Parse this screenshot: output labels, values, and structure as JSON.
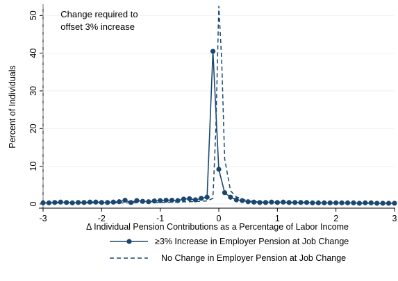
{
  "chart_data": {
    "type": "line",
    "xlabel": "Δ Individual Pension Contributions as a Percentage of Labor Income",
    "ylabel": "Percent of Individuals",
    "xlim": [
      -3,
      3
    ],
    "ylim": [
      0,
      53
    ],
    "xticks": [
      -3,
      -2,
      -1,
      0,
      1,
      2,
      3
    ],
    "yticks": [
      0,
      10,
      20,
      30,
      40,
      50
    ],
    "grid": true,
    "legend": "bottom",
    "reference_line": {
      "x": -3,
      "style": "dashed"
    },
    "annotation": {
      "x": -2.7,
      "y": 49.5,
      "lines": [
        "Change required to",
        "offset 3% increase"
      ]
    },
    "colors": {
      "series": "#1a476f",
      "refline": "#999999",
      "grid": "#eaf2f3"
    },
    "series": [
      {
        "name": "≥3% Increase in Employer Pension at Job Change",
        "style": "solid-markers",
        "x": [
          -3.0,
          -2.9,
          -2.8,
          -2.7,
          -2.6,
          -2.5,
          -2.4,
          -2.3,
          -2.2,
          -2.1,
          -2.0,
          -1.9,
          -1.8,
          -1.7,
          -1.6,
          -1.5,
          -1.4,
          -1.3,
          -1.2,
          -1.1,
          -1.0,
          -0.9,
          -0.8,
          -0.7,
          -0.6,
          -0.5,
          -0.4,
          -0.3,
          -0.2,
          -0.1,
          0.0,
          0.1,
          0.2,
          0.3,
          0.4,
          0.5,
          0.6,
          0.7,
          0.8,
          0.9,
          1.0,
          1.1,
          1.2,
          1.3,
          1.4,
          1.5,
          1.6,
          1.7,
          1.8,
          1.9,
          2.0,
          2.1,
          2.2,
          2.3,
          2.4,
          2.5,
          2.6,
          2.7,
          2.8,
          2.9,
          3.0
        ],
        "y": [
          0.3,
          0.3,
          0.4,
          0.5,
          0.4,
          0.3,
          0.4,
          0.4,
          0.5,
          0.5,
          0.4,
          0.4,
          0.5,
          0.6,
          1.0,
          0.4,
          0.9,
          0.7,
          0.6,
          0.8,
          0.9,
          1.0,
          1.0,
          0.9,
          1.3,
          1.4,
          1.1,
          1.5,
          1.8,
          40.5,
          9.2,
          3.0,
          1.8,
          1.1,
          0.9,
          0.6,
          0.5,
          0.4,
          0.4,
          0.5,
          0.4,
          0.5,
          0.4,
          0.4,
          0.4,
          0.4,
          0.3,
          0.3,
          0.3,
          0.3,
          0.3,
          0.3,
          0.3,
          0.3,
          0.2,
          0.3,
          0.3,
          0.2,
          0.2,
          0.2,
          0.2
        ]
      },
      {
        "name": "No Change in Employer Pension at Job Change",
        "style": "dashed",
        "x": [
          -3.0,
          -2.5,
          -2.0,
          -1.5,
          -1.0,
          -0.5,
          -0.2,
          -0.1,
          -0.05,
          0.0,
          0.05,
          0.1,
          0.2,
          0.3,
          0.4,
          0.5,
          0.7,
          1.0,
          1.5,
          2.0,
          2.5,
          3.0
        ],
        "y": [
          0.3,
          0.3,
          0.3,
          0.3,
          0.4,
          0.6,
          0.8,
          1.5,
          20.0,
          52.5,
          38.0,
          12.0,
          3.5,
          1.9,
          1.3,
          0.8,
          0.5,
          0.4,
          0.3,
          0.3,
          0.2,
          0.2
        ]
      }
    ]
  }
}
